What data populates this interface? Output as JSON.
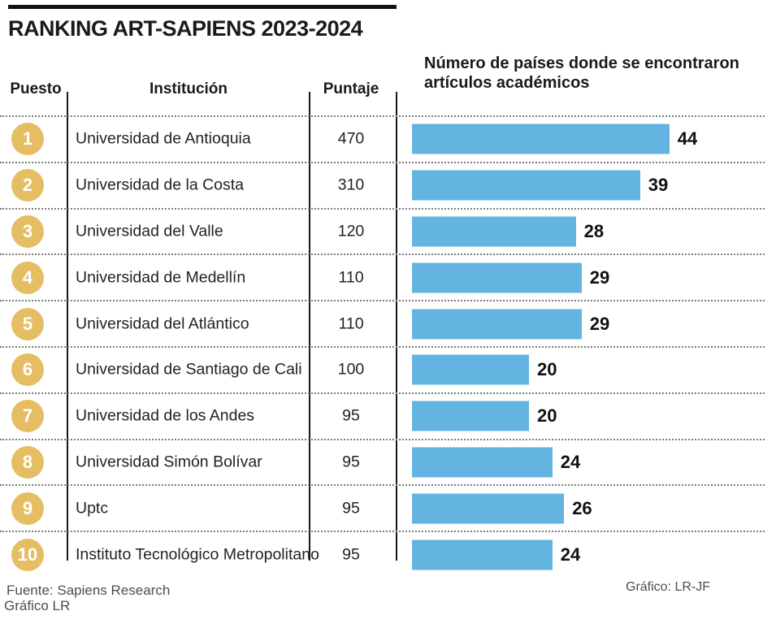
{
  "title": "RANKING ART-SAPIENS 2023-2024",
  "columns": {
    "rank": "Puesto",
    "institution": "Institución",
    "score": "Puntaje"
  },
  "footer": {
    "source_line1": "Fuente: Sapiens Research",
    "source_line2": "Gráfico LR",
    "credit": "Gráfico: LR-JF"
  },
  "colors": {
    "bar": "#63b4e1",
    "rank_circle": "#e5be63"
  },
  "chart_data": {
    "type": "bar",
    "orientation": "horizontal",
    "title": "RANKING ART-SAPIENS 2023-2024",
    "value_axis_label": "Número de países donde se encontraron artículos académicos",
    "score_axis_label": "Puntaje",
    "ranks": [
      1,
      2,
      3,
      4,
      5,
      6,
      7,
      8,
      9,
      10
    ],
    "categories": [
      "Universidad de Antioquia",
      "Universidad de la Costa",
      "Universidad del Valle",
      "Universidad de Medellín",
      "Universidad del Atlántico",
      "Universidad de Santiago de Cali",
      "Universidad de los Andes",
      "Universidad Simón Bolívar",
      "Uptc",
      "Instituto Tecnológico Metropolitano"
    ],
    "scores": [
      470,
      310,
      120,
      110,
      110,
      100,
      95,
      95,
      95,
      95
    ],
    "values": [
      44,
      39,
      28,
      29,
      29,
      20,
      20,
      24,
      26,
      24
    ],
    "xlim": [
      0,
      44
    ],
    "grid": false,
    "legend": false,
    "data_labels": true
  }
}
